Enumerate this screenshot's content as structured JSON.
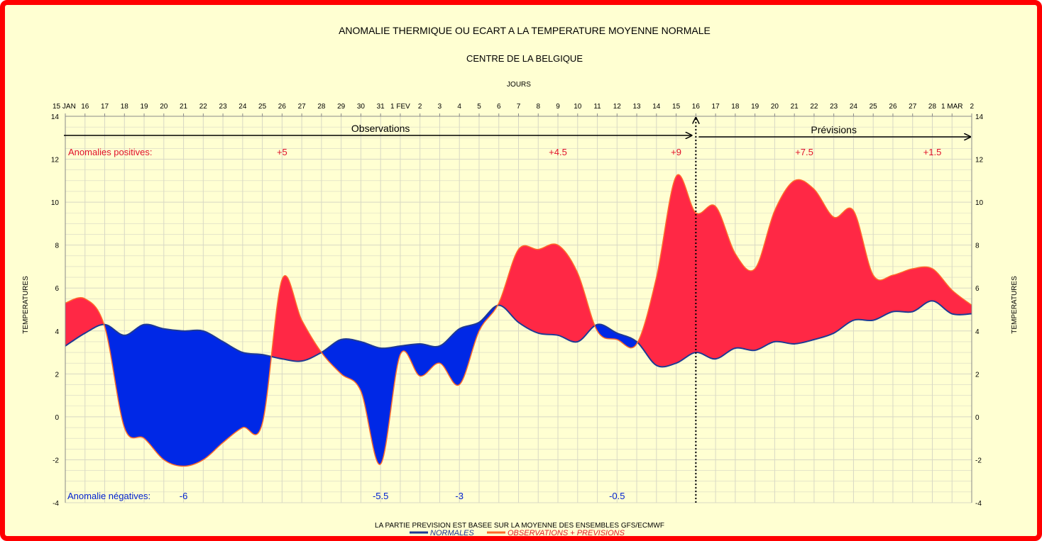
{
  "chart_data": {
    "type": "area",
    "title": "ANOMALIE THERMIQUE OU ECART A LA TEMPERATURE MOYENNE NORMALE",
    "subtitle": "CENTRE DE LA BELGIQUE",
    "xlabel": "JOURS",
    "ylabel_left": "TEMPERATURES",
    "ylabel_right": "TEMPERATURES",
    "ylim": [
      -4,
      14
    ],
    "yticks": [
      "-4",
      "-2",
      "0",
      "2",
      "4",
      "6",
      "8",
      "10",
      "12",
      "14"
    ],
    "x_tick_labels": [
      "15 JAN",
      "16",
      "17",
      "18",
      "19",
      "20",
      "21",
      "22",
      "23",
      "24",
      "25",
      "26",
      "27",
      "28",
      "29",
      "30",
      "31",
      "1 FEV",
      "2",
      "3",
      "4",
      "5",
      "6",
      "7",
      "8",
      "9",
      "10",
      "11",
      "12",
      "13",
      "14",
      "15",
      "16",
      "17",
      "18",
      "19",
      "20",
      "21",
      "22",
      "23",
      "24",
      "25",
      "26",
      "27",
      "28",
      "1 MAR",
      "2"
    ],
    "grid": true,
    "forecast_start_index": 32,
    "series": [
      {
        "name": "NORMALES",
        "color": "#1f3a93",
        "values": [
          3.3,
          3.9,
          4.3,
          3.8,
          4.3,
          4.1,
          4.0,
          4.0,
          3.5,
          3.0,
          2.9,
          2.7,
          2.6,
          3.0,
          3.6,
          3.5,
          3.2,
          3.3,
          3.4,
          3.3,
          4.1,
          4.4,
          5.2,
          4.4,
          3.9,
          3.8,
          3.5,
          4.3,
          3.9,
          3.5,
          2.4,
          2.5,
          3.0,
          2.7,
          3.2,
          3.1,
          3.5,
          3.4,
          3.6,
          3.9,
          4.5,
          4.5,
          4.9,
          4.9,
          5.4,
          4.8,
          4.8
        ]
      },
      {
        "name": "OBSERVATIONS + PREVISIONS",
        "color": "#ff6a2a",
        "values": [
          5.3,
          5.5,
          4.2,
          -0.5,
          -1.0,
          -2.0,
          -2.3,
          -2.0,
          -1.2,
          -0.5,
          -0.3,
          6.4,
          4.5,
          3.0,
          2.0,
          1.2,
          -2.2,
          2.9,
          1.9,
          2.5,
          1.5,
          4.0,
          5.3,
          7.8,
          7.8,
          8.0,
          6.7,
          4.0,
          3.6,
          3.4,
          6.5,
          11.2,
          9.5,
          9.8,
          7.6,
          6.9,
          9.6,
          11.0,
          10.6,
          9.3,
          9.6,
          6.6,
          6.6,
          6.9,
          6.9,
          5.9,
          5.2
        ]
      }
    ],
    "legend_position": "bottom",
    "annotations": {
      "observations_label": "Observations",
      "previsions_label": "Prévisions",
      "positive_title": "Anomalies positives:",
      "negative_title": "Anomalie négatives:",
      "positive_values": [
        {
          "label": "+5",
          "x_index": 11
        },
        {
          "label": "+4.5",
          "x_index": 25
        },
        {
          "label": "+9",
          "x_index": 31
        },
        {
          "label": "+7.5",
          "x_index": 37.5
        },
        {
          "label": "+1.5",
          "x_index": 44
        }
      ],
      "negative_values": [
        {
          "label": "-6",
          "x_index": 6
        },
        {
          "label": "-5.5",
          "x_index": 16
        },
        {
          "label": "-3",
          "x_index": 20
        },
        {
          "label": "-0.5",
          "x_index": 28
        }
      ]
    },
    "footnote": "LA PARTIE PREVISION EST BASEE SUR LA MOYENNE DES ENSEMBLES GFS/ECMWF",
    "colors": {
      "positive_fill": "#ff2845",
      "negative_fill": "#0028e6",
      "background": "#ffffd2",
      "grid": "#d8d8c4",
      "border": "#ff0000"
    }
  }
}
